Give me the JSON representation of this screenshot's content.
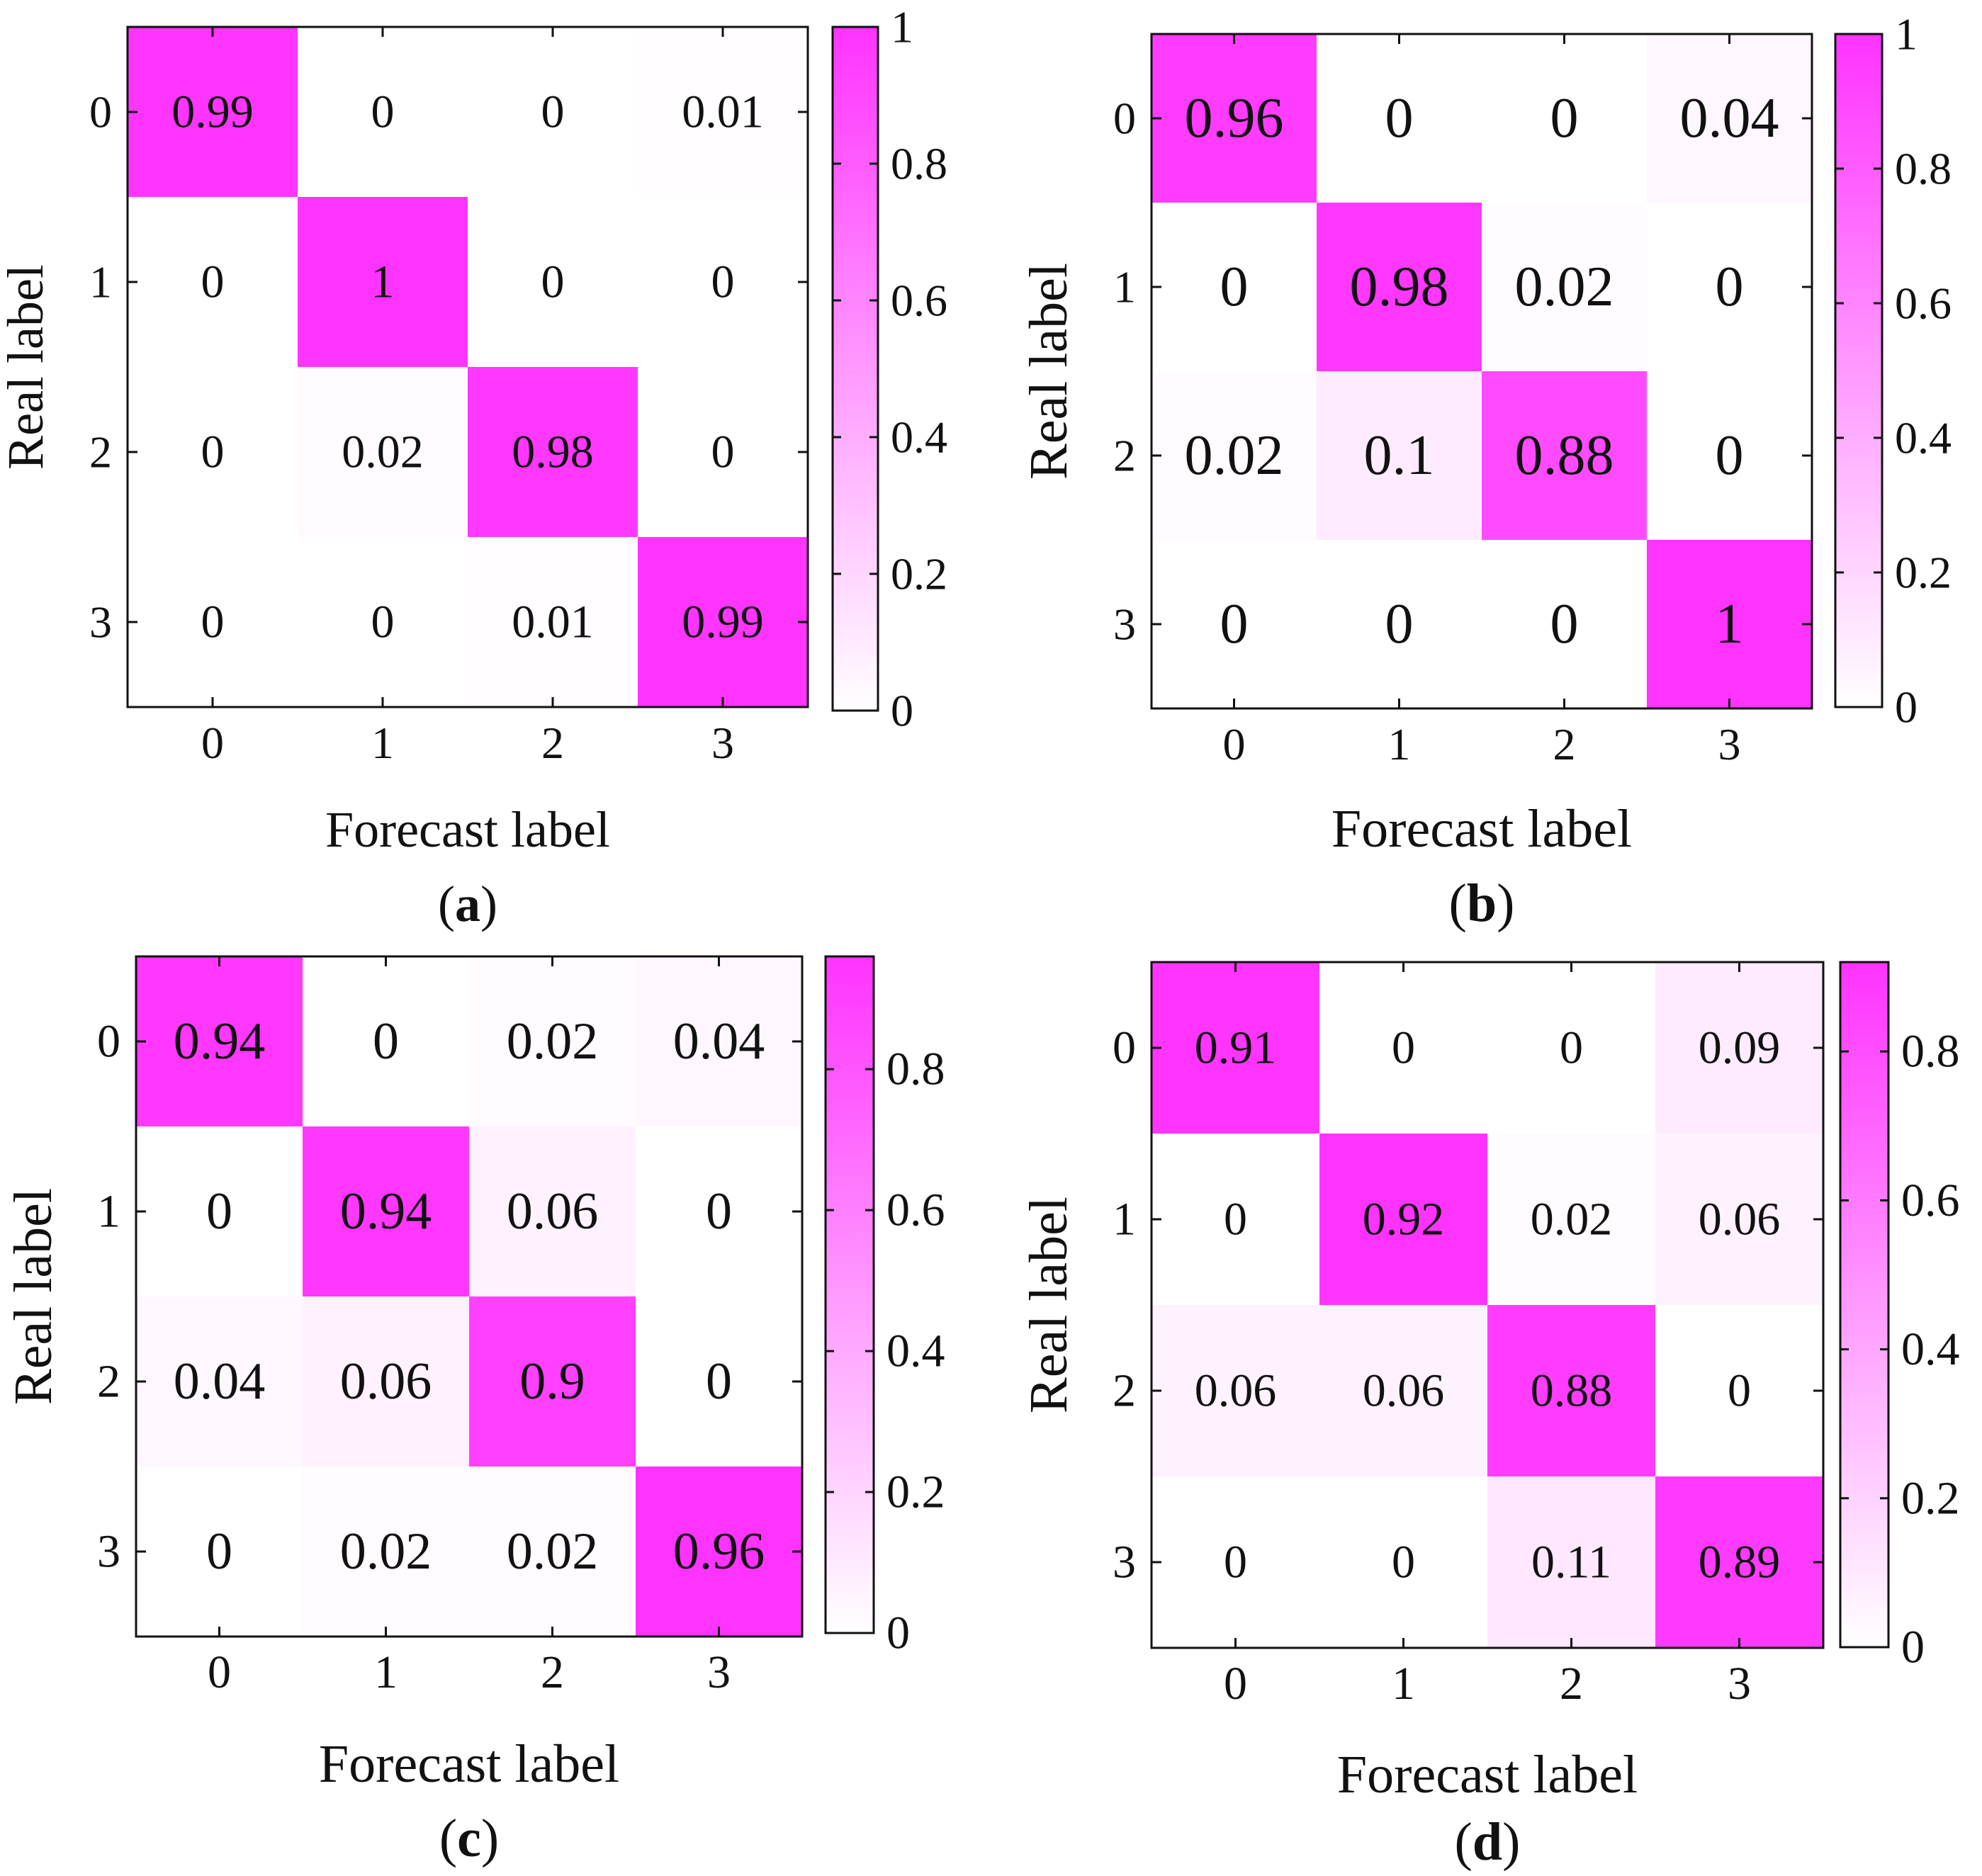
{
  "chart_data": [
    {
      "panel": "(a)",
      "type": "heatmap",
      "xlabel": "Forecast label",
      "ylabel": "Real label",
      "x_categories": [
        "0",
        "1",
        "2",
        "3"
      ],
      "y_categories": [
        "0",
        "1",
        "2",
        "3"
      ],
      "values": [
        [
          0.99,
          0,
          0,
          0.01
        ],
        [
          0,
          1,
          0,
          0
        ],
        [
          0,
          0.02,
          0.98,
          0
        ],
        [
          0,
          0,
          0.01,
          0.99
        ]
      ],
      "cell_labels": [
        [
          "0.99",
          "0",
          "0",
          "0.01"
        ],
        [
          "0",
          "1",
          "0",
          "0"
        ],
        [
          "0",
          "0.02",
          "0.98",
          "0"
        ],
        [
          "0",
          "0",
          "0.01",
          "0.99"
        ]
      ],
      "colorbar": {
        "range": [
          0,
          1
        ],
        "ticks": [
          0,
          0.2,
          0.4,
          0.6,
          0.8,
          1
        ],
        "tick_labels": [
          "0",
          "0.2",
          "0.4",
          "0.6",
          "0.8",
          "1"
        ]
      },
      "colormap": [
        "#ffffff",
        "#ff33ff"
      ]
    },
    {
      "panel": "(b)",
      "type": "heatmap",
      "xlabel": "Forecast label",
      "ylabel": "Real label",
      "x_categories": [
        "0",
        "1",
        "2",
        "3"
      ],
      "y_categories": [
        "0",
        "1",
        "2",
        "3"
      ],
      "values": [
        [
          0.96,
          0,
          0,
          0.04
        ],
        [
          0,
          0.98,
          0.02,
          0
        ],
        [
          0.02,
          0.1,
          0.88,
          0
        ],
        [
          0,
          0,
          0,
          1
        ]
      ],
      "cell_labels": [
        [
          "0.96",
          "0",
          "0",
          "0.04"
        ],
        [
          "0",
          "0.98",
          "0.02",
          "0"
        ],
        [
          "0.02",
          "0.1",
          "0.88",
          "0"
        ],
        [
          "0",
          "0",
          "0",
          "1"
        ]
      ],
      "colorbar": {
        "range": [
          0,
          1
        ],
        "ticks": [
          0,
          0.2,
          0.4,
          0.6,
          0.8,
          1
        ],
        "tick_labels": [
          "0",
          "0.2",
          "0.4",
          "0.6",
          "0.8",
          "1"
        ]
      },
      "colormap": [
        "#ffffff",
        "#ff33ff"
      ]
    },
    {
      "panel": "(c)",
      "type": "heatmap",
      "xlabel": "Forecast label",
      "ylabel": "Real label",
      "x_categories": [
        "0",
        "1",
        "2",
        "3"
      ],
      "y_categories": [
        "0",
        "1",
        "2",
        "3"
      ],
      "values": [
        [
          0.94,
          0,
          0.02,
          0.04
        ],
        [
          0,
          0.94,
          0.06,
          0
        ],
        [
          0.04,
          0.06,
          0.9,
          0
        ],
        [
          0,
          0.02,
          0.02,
          0.96
        ]
      ],
      "cell_labels": [
        [
          "0.94",
          "0",
          "0.02",
          "0.04"
        ],
        [
          "0",
          "0.94",
          "0.06",
          "0"
        ],
        [
          "0.04",
          "0.06",
          "0.9",
          "0"
        ],
        [
          "0",
          "0.02",
          "0.02",
          "0.96"
        ]
      ],
      "colorbar": {
        "range": [
          0,
          0.96
        ],
        "ticks": [
          0,
          0.2,
          0.4,
          0.6,
          0.8
        ],
        "tick_labels": [
          "0",
          "0.2",
          "0.4",
          "0.6",
          "0.8"
        ]
      },
      "colormap": [
        "#ffffff",
        "#ff33ff"
      ]
    },
    {
      "panel": "(d)",
      "type": "heatmap",
      "xlabel": "Forecast label",
      "ylabel": "Real label",
      "x_categories": [
        "0",
        "1",
        "2",
        "3"
      ],
      "y_categories": [
        "0",
        "1",
        "2",
        "3"
      ],
      "values": [
        [
          0.91,
          0,
          0,
          0.09
        ],
        [
          0,
          0.92,
          0.02,
          0.06
        ],
        [
          0.06,
          0.06,
          0.88,
          0
        ],
        [
          0,
          0,
          0.11,
          0.89
        ]
      ],
      "cell_labels": [
        [
          "0.91",
          "0",
          "0",
          "0.09"
        ],
        [
          "0",
          "0.92",
          "0.02",
          "0.06"
        ],
        [
          "0.06",
          "0.06",
          "0.88",
          "0"
        ],
        [
          "0",
          "0",
          "0.11",
          "0.89"
        ]
      ],
      "colorbar": {
        "range": [
          0,
          0.92
        ],
        "ticks": [
          0,
          0.2,
          0.4,
          0.6,
          0.8
        ],
        "tick_labels": [
          "0",
          "0.2",
          "0.4",
          "0.6",
          "0.8"
        ]
      },
      "colormap": [
        "#ffffff",
        "#ff33ff"
      ]
    }
  ]
}
